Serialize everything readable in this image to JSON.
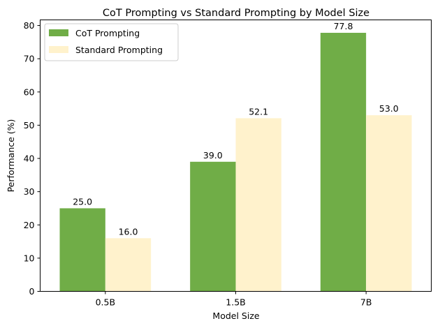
{
  "chart_data": {
    "type": "bar",
    "title": "CoT Prompting vs Standard Prompting by Model Size",
    "xlabel": "Model Size",
    "ylabel": "Performance (%)",
    "categories": [
      "0.5B",
      "1.5B",
      "7B"
    ],
    "series": [
      {
        "name": "CoT Prompting",
        "values": [
          25.0,
          39.0,
          77.8
        ],
        "labels": [
          "25.0",
          "39.0",
          "77.8"
        ],
        "color": "#70ad47"
      },
      {
        "name": "Standard Prompting",
        "values": [
          16.0,
          52.1,
          53.0
        ],
        "labels": [
          "16.0",
          "52.1",
          "53.0"
        ],
        "color": "#fff2cc"
      }
    ],
    "ylim": [
      0,
      81.69
    ],
    "yticks": [
      0,
      10,
      20,
      30,
      40,
      50,
      60,
      70,
      80
    ],
    "grid": false,
    "legend_position": "top-left"
  }
}
